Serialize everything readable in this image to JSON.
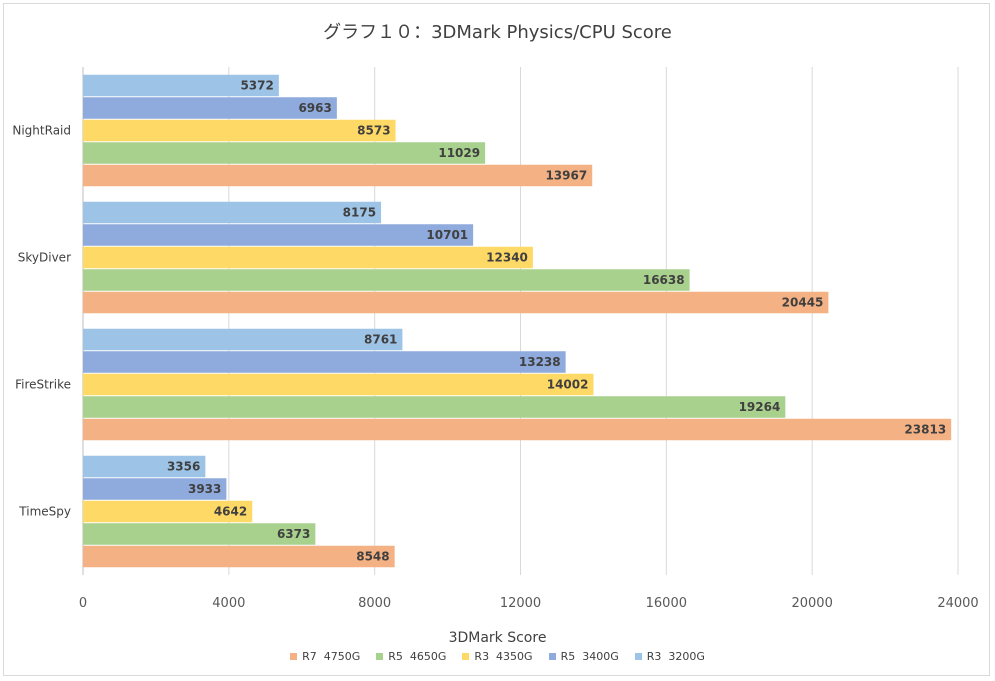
{
  "chart_data": {
    "type": "bar",
    "orientation": "horizontal",
    "title": "グラフ１０：3DMark Physics/CPU Score",
    "xlabel": "3DMark Score",
    "ylabel": "",
    "xlim": [
      0,
      24000
    ],
    "xticks": [
      "0",
      "4000",
      "8000",
      "12000",
      "16000",
      "20000",
      "24000"
    ],
    "grid": true,
    "legend_position": "bottom",
    "categories": [
      "NightRaid",
      "SkyDiver",
      "FireStrike",
      "TimeSpy"
    ],
    "series": [
      {
        "name": "R7  4750G",
        "color": "#f4b183",
        "values": [
          13967,
          20445,
          23813,
          8548
        ]
      },
      {
        "name": "R5  4650G",
        "color": "#a9d18e",
        "values": [
          11029,
          16638,
          19264,
          6373
        ]
      },
      {
        "name": "R3  4350G",
        "color": "#ffd966",
        "values": [
          8573,
          12340,
          14002,
          4642
        ]
      },
      {
        "name": "R5  3400G",
        "color": "#8faadc",
        "values": [
          6963,
          10701,
          13238,
          3933
        ]
      },
      {
        "name": "R3  3200G",
        "color": "#9dc3e6",
        "values": [
          5372,
          8175,
          8761,
          3356
        ]
      }
    ]
  }
}
